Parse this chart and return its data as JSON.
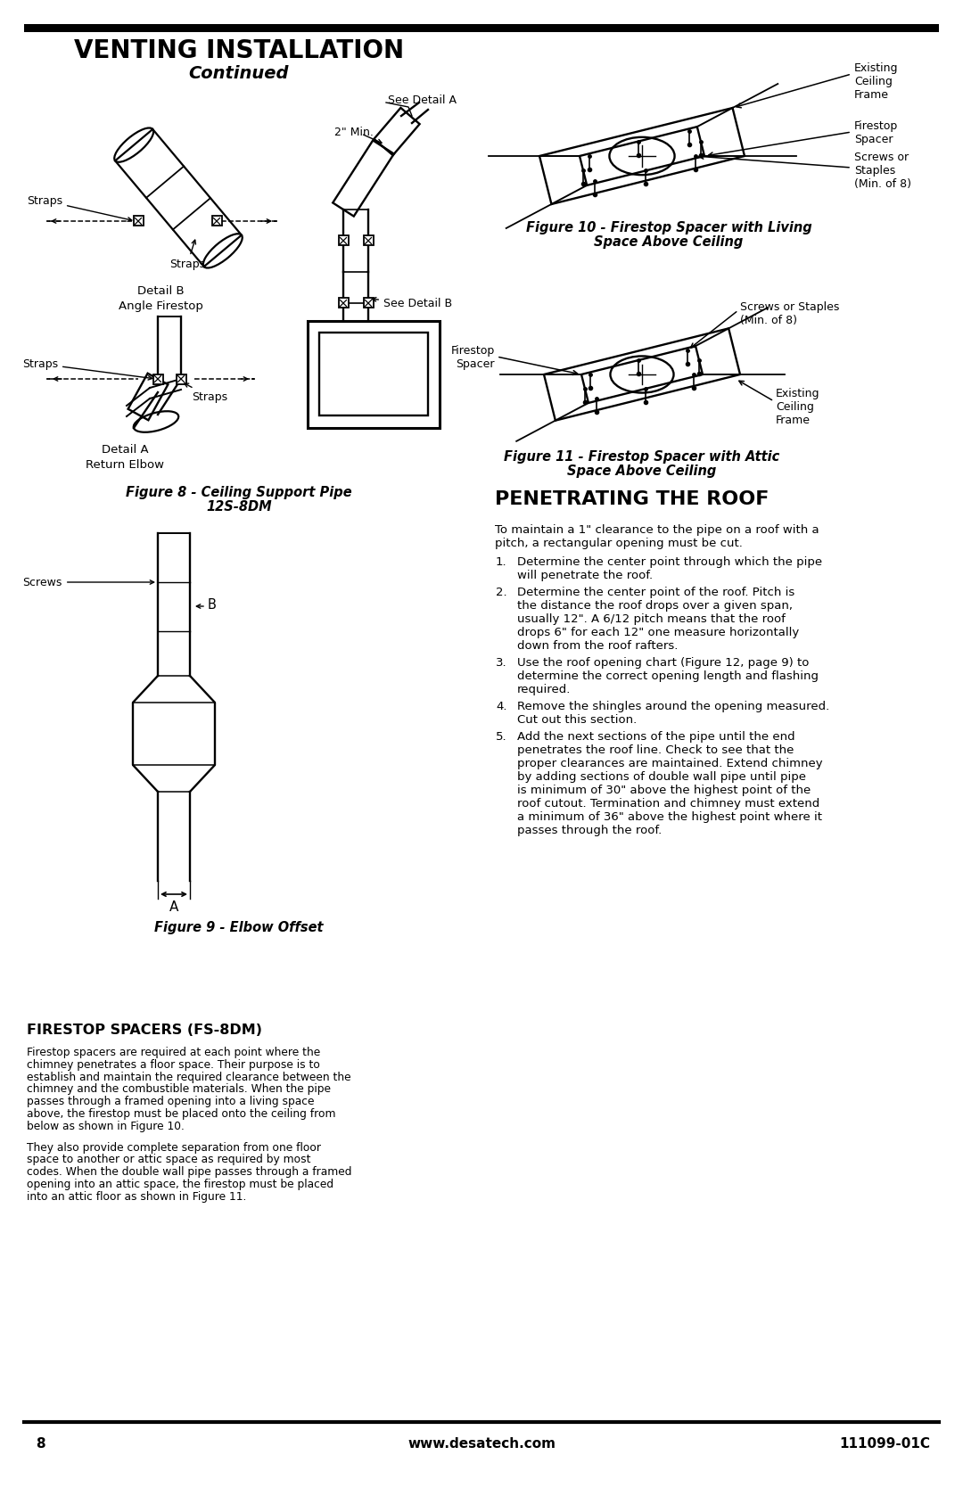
{
  "title": "VENTING INSTALLATION",
  "subtitle": "Continued",
  "bg_color": "#ffffff",
  "page_num": "8",
  "website": "www.desatech.com",
  "doc_num": "111099-01C",
  "fig8_cap1": "Figure 8 - Ceiling Support Pipe",
  "fig8_cap2": "12S-8DM",
  "fig9_cap": "Figure 9 - Elbow Offset",
  "fig10_cap1": "Figure 10 - Firestop Spacer with Living",
  "fig10_cap2": "Space Above Ceiling",
  "fig11_cap1": "Figure 11 - Firestop Spacer with Attic",
  "fig11_cap2": "Space Above Ceiling",
  "fs_title": "FIRESTOP SPACERS (FS-8DM)",
  "fs_para1": "Firestop spacers are required at each point where the chimney penetrates a floor space. Their purpose is to establish and maintain the required clearance between the chimney and the combustible materials. When the pipe passes through a framed opening into a living space above, the firestop must be placed onto the ceiling from below as shown in Figure 10.",
  "fs_para2": "They also provide complete separation from one floor space to another or attic space as required by most codes. When the double wall pipe passes through a framed opening into an attic space, the firestop must be placed into an attic floor as shown in Figure 11.",
  "roof_title": "PENETRATING THE ROOF",
  "roof_intro": "To maintain a 1\" clearance to the pipe on a roof with a pitch, a rectangular opening must be cut.",
  "roof_steps": [
    "Determine the center point through which the pipe will penetrate the roof.",
    "Determine the center point of the roof. Pitch is the distance the roof drops over a given span, usually 12\". A 6/12 pitch means that the roof drops 6\" for each 12\" one measure horizontally down from the roof rafters.",
    "Use the roof opening chart (Figure 12, page 9) to determine the correct opening length and flashing required.",
    "Remove the shingles around the opening measured. Cut out this section.",
    "Add the next sections of the pipe until the end penetrates the roof line. Check to see that the proper clearances are maintained. Extend chimney by adding sections of double wall pipe until pipe is minimum of 30\" above the highest point of the roof cutout. Termination and chimney must extend a minimum of 36\" above the highest point where it passes through the roof."
  ]
}
